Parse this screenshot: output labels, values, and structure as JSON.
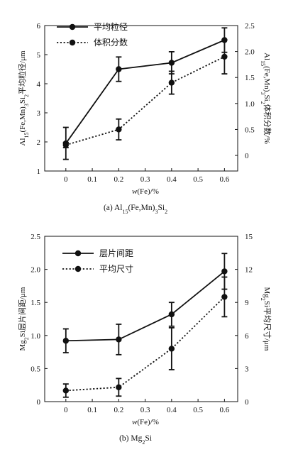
{
  "chart_data": [
    {
      "type": "line",
      "caption": "(a) Al15(Fe,Mn)3Si2",
      "xlabel": "w(Fe)/%",
      "x_ticks": [
        "0",
        "0.1",
        "0.2",
        "0.3",
        "0.4",
        "0.5",
        "0.6"
      ],
      "xlim": [
        -0.08,
        0.65
      ],
      "left_axis": {
        "label": "Al15(Fe,Mn)3Si2平均粒径/μm",
        "ylim": [
          1,
          6
        ],
        "ticks": [
          "1",
          "2",
          "3",
          "4",
          "5",
          "6"
        ]
      },
      "right_axis": {
        "label": "Al15(Fe,Mn)3Si2体积分数/%",
        "ylim": [
          -0.3,
          2.5
        ],
        "ticks": [
          "0",
          "0.5",
          "1.0",
          "1.5",
          "2.0",
          "2.5"
        ]
      },
      "series": [
        {
          "name": "平均粒径",
          "axis": "left",
          "style": "solid",
          "x": [
            0,
            0.2,
            0.4,
            0.6
          ],
          "y": [
            1.95,
            4.5,
            4.72,
            5.5
          ],
          "err": [
            0.55,
            0.42,
            0.38,
            0.42
          ]
        },
        {
          "name": "体积分数",
          "axis": "right",
          "style": "dotted",
          "x": [
            0,
            0.2,
            0.4,
            0.6
          ],
          "y": [
            0.2,
            0.5,
            1.4,
            1.9
          ],
          "err": [
            0.05,
            0.2,
            0.22,
            0.33
          ]
        }
      ],
      "legend_position": "top-left"
    },
    {
      "type": "line",
      "caption": "(b) Mg2Si",
      "xlabel": "w(Fe)/%",
      "x_ticks": [
        "0",
        "0.1",
        "0.2",
        "0.3",
        "0.4",
        "0.5",
        "0.6"
      ],
      "xlim": [
        -0.08,
        0.65
      ],
      "left_axis": {
        "label": "Mg2Si层片间距/μm",
        "ylim": [
          0,
          2.5
        ],
        "ticks": [
          "0",
          "0.5",
          "1.0",
          "1.5",
          "2.0",
          "2.5"
        ]
      },
      "right_axis": {
        "label": "Mg2Si平均尺寸/μm",
        "ylim": [
          0,
          15
        ],
        "ticks": [
          "0",
          "3",
          "6",
          "9",
          "12",
          "15"
        ]
      },
      "series": [
        {
          "name": "层片间距",
          "axis": "left",
          "style": "solid",
          "x": [
            0,
            0.2,
            0.4,
            0.6
          ],
          "y": [
            0.92,
            0.94,
            1.32,
            1.97
          ],
          "err": [
            0.18,
            0.23,
            0.18,
            0.27
          ]
        },
        {
          "name": "平均尺寸",
          "axis": "right",
          "style": "dotted",
          "x": [
            0,
            0.2,
            0.4,
            0.6
          ],
          "y": [
            1.0,
            1.3,
            4.8,
            9.5
          ],
          "err": [
            0.6,
            0.8,
            1.9,
            1.8
          ]
        }
      ],
      "legend_position": "top-left"
    }
  ]
}
